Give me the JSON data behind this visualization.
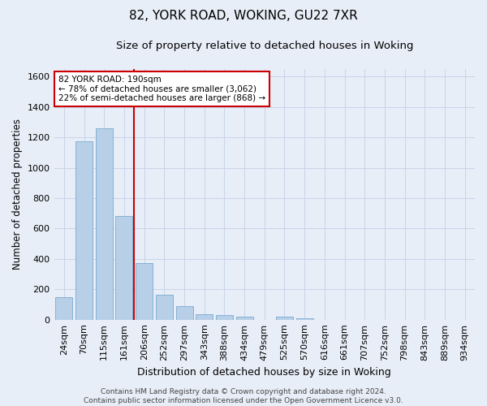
{
  "title1": "82, YORK ROAD, WOKING, GU22 7XR",
  "title2": "Size of property relative to detached houses in Woking",
  "xlabel": "Distribution of detached houses by size in Woking",
  "ylabel": "Number of detached properties",
  "categories": [
    "24sqm",
    "70sqm",
    "115sqm",
    "161sqm",
    "206sqm",
    "252sqm",
    "297sqm",
    "343sqm",
    "388sqm",
    "434sqm",
    "479sqm",
    "525sqm",
    "570sqm",
    "616sqm",
    "661sqm",
    "707sqm",
    "752sqm",
    "798sqm",
    "843sqm",
    "889sqm",
    "934sqm"
  ],
  "values": [
    148,
    1175,
    1260,
    680,
    375,
    162,
    90,
    38,
    30,
    22,
    0,
    18,
    10,
    0,
    0,
    0,
    0,
    0,
    0,
    0,
    0
  ],
  "bar_color": "#b8cfe8",
  "bar_edgecolor": "#7aaacf",
  "vline_x": 4.0,
  "vline_color": "#cc0000",
  "annotation_text": "82 YORK ROAD: 190sqm\n← 78% of detached houses are smaller (3,062)\n22% of semi-detached houses are larger (868) →",
  "annotation_box_color": "#ffffff",
  "annotation_box_edgecolor": "#cc0000",
  "ylim": [
    0,
    1650
  ],
  "yticks": [
    0,
    200,
    400,
    600,
    800,
    1000,
    1200,
    1400,
    1600
  ],
  "grid_color": "#c8d4e8",
  "bg_color": "#e8eef8",
  "footer": "Contains HM Land Registry data © Crown copyright and database right 2024.\nContains public sector information licensed under the Open Government Licence v3.0.",
  "title1_fontsize": 11,
  "title2_fontsize": 9.5,
  "xlabel_fontsize": 9,
  "ylabel_fontsize": 8.5,
  "tick_fontsize": 8,
  "footer_fontsize": 6.5,
  "ann_fontsize": 7.5
}
